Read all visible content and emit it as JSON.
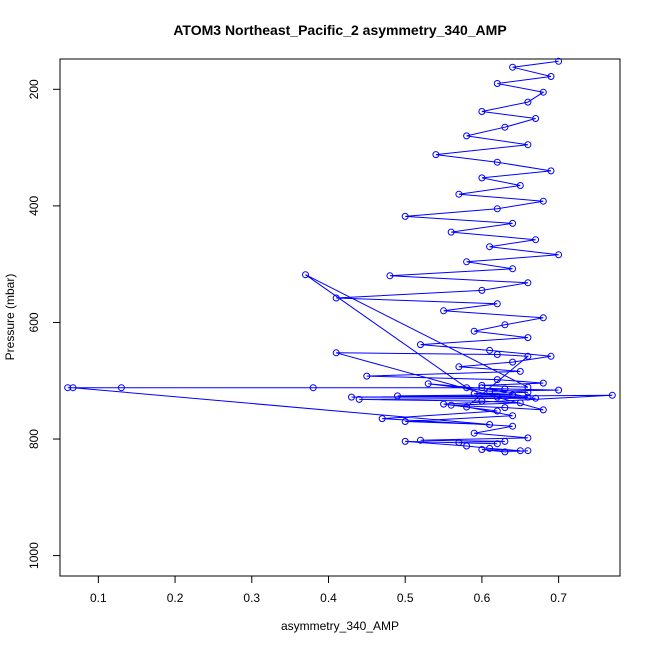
{
  "chart_data": {
    "type": "scatter",
    "title": "ATOM3 Northeast_Pacific_2 asymmetry_340_AMP",
    "xlabel": "asymmetry_340_AMP",
    "ylabel": "Pressure (mbar)",
    "xlim": [
      0.05,
      0.78
    ],
    "ylim": [
      1035,
      148
    ],
    "y_inverted": true,
    "xticks": [
      0.1,
      0.2,
      0.3,
      0.4,
      0.5,
      0.6,
      0.7
    ],
    "yticks": [
      200,
      400,
      600,
      800,
      1000
    ],
    "marker": "open-circle",
    "connected": true,
    "grid": false,
    "color": "#0000ff",
    "series": [
      {
        "x": [
          0.7,
          0.64,
          0.69,
          0.62,
          0.68,
          0.66,
          0.6,
          0.67,
          0.63,
          0.58,
          0.66,
          0.54,
          0.62,
          0.69,
          0.6,
          0.65,
          0.57,
          0.68,
          0.62,
          0.5,
          0.64,
          0.56,
          0.67,
          0.61,
          0.7,
          0.58,
          0.64,
          0.48,
          0.66,
          0.6,
          0.41,
          0.62,
          0.55,
          0.68,
          0.63,
          0.59,
          0.66,
          0.52,
          0.61,
          0.69,
          0.64,
          0.57,
          0.65,
          0.45,
          0.62,
          0.68,
          0.6,
          0.66,
          0.37,
          0.58,
          0.63,
          0.7,
          0.61,
          0.53,
          0.66,
          0.59,
          0.64,
          0.49,
          0.62,
          0.67,
          0.44,
          0.6,
          0.65,
          0.56,
          0.63,
          0.68,
          0.41,
          0.62,
          0.66,
          0.58,
          0.64,
          0.5,
          0.61,
          0.067,
          0.06,
          0.13,
          0.38,
          0.6,
          0.66,
          0.43,
          0.77,
          0.55,
          0.62,
          0.47,
          0.64,
          0.59,
          0.66,
          0.52,
          0.63,
          0.57,
          0.62,
          0.5,
          0.58,
          0.61,
          0.65,
          0.6,
          0.63,
          0.66
        ],
        "y": [
          152,
          162,
          178,
          190,
          205,
          222,
          238,
          250,
          265,
          280,
          295,
          312,
          325,
          340,
          352,
          365,
          380,
          392,
          405,
          418,
          430,
          445,
          458,
          470,
          484,
          496,
          508,
          520,
          532,
          545,
          558,
          568,
          580,
          592,
          604,
          615,
          626,
          638,
          648,
          658,
          668,
          676,
          684,
          692,
          698,
          704,
          708,
          711,
          518,
          712,
          714,
          716,
          718,
          705,
          720,
          722,
          724,
          726,
          728,
          730,
          732,
          735,
          738,
          742,
          746,
          750,
          652,
          655,
          658,
          745,
          760,
          770,
          775,
          712,
          712,
          712,
          712,
          712,
          728,
          728,
          725,
          740,
          752,
          765,
          778,
          790,
          798,
          802,
          804,
          806,
          808,
          804,
          812,
          816,
          820,
          818,
          822,
          820
        ]
      }
    ]
  }
}
